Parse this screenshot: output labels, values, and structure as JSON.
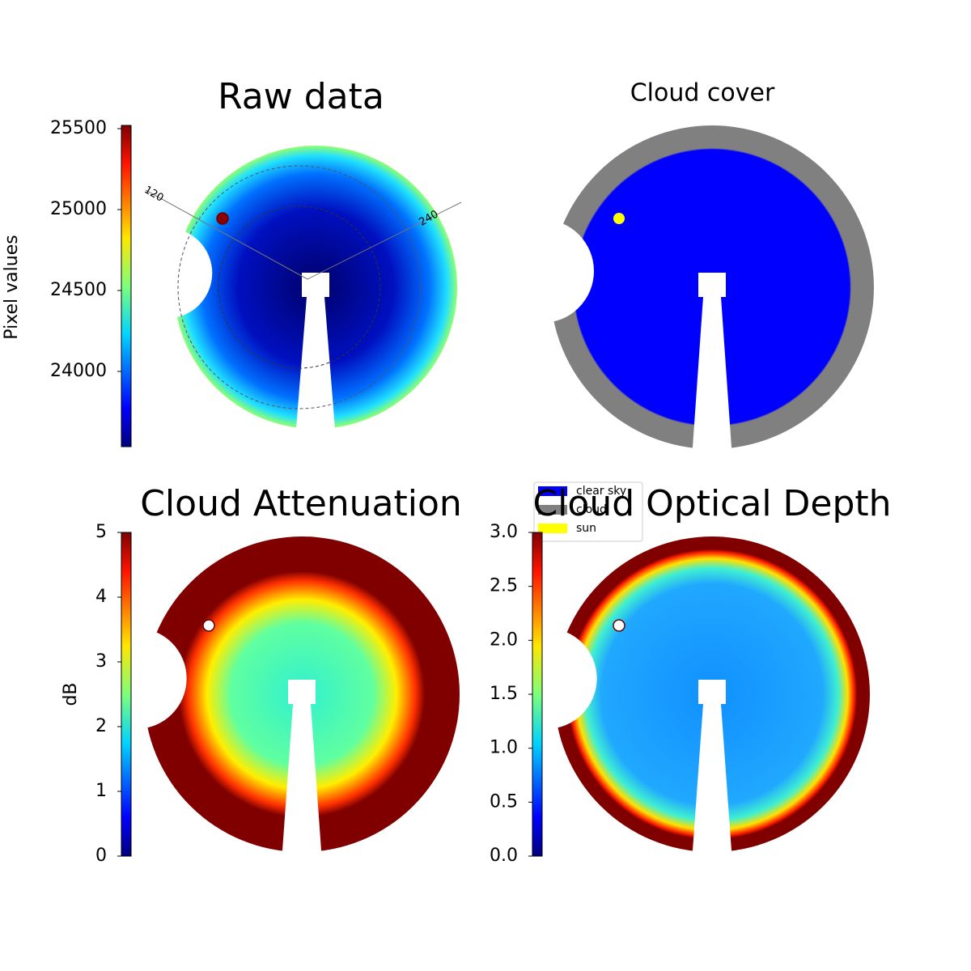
{
  "chart_data": [
    {
      "type": "image",
      "title": "Raw data",
      "colorbar": {
        "label": "Pixel values",
        "ylim": [
          23535,
          25520
        ],
        "yticks": [
          24000,
          24500,
          25000,
          25500
        ]
      },
      "polar_ticks": [
        120,
        240
      ]
    },
    {
      "type": "image",
      "title": "Cloud cover",
      "legend": [
        {
          "name": "clear sky",
          "color": "#0000ff"
        },
        {
          "name": "cloud",
          "color": "#808080"
        },
        {
          "name": "sun",
          "color": "#ffff00"
        }
      ]
    },
    {
      "type": "image",
      "title": "Cloud Attenuation",
      "colorbar": {
        "label": "dB",
        "ylim": [
          0,
          5
        ],
        "yticks": [
          0,
          1,
          2,
          3,
          4,
          5
        ]
      }
    },
    {
      "type": "image",
      "title": "Cloud Optical Depth",
      "colorbar": {
        "ylim": [
          0,
          3
        ],
        "yticks": [
          {
            "value": 0,
            "label": "0.0"
          },
          {
            "value": 0.5,
            "label": "0.5"
          },
          {
            "value": 1,
            "label": "1.0"
          },
          {
            "value": 1.5,
            "label": "1.5"
          },
          {
            "value": 2,
            "label": "2.0"
          },
          {
            "value": 2.5,
            "label": "2.5"
          },
          {
            "value": 3,
            "label": "3.0"
          }
        ]
      }
    }
  ]
}
